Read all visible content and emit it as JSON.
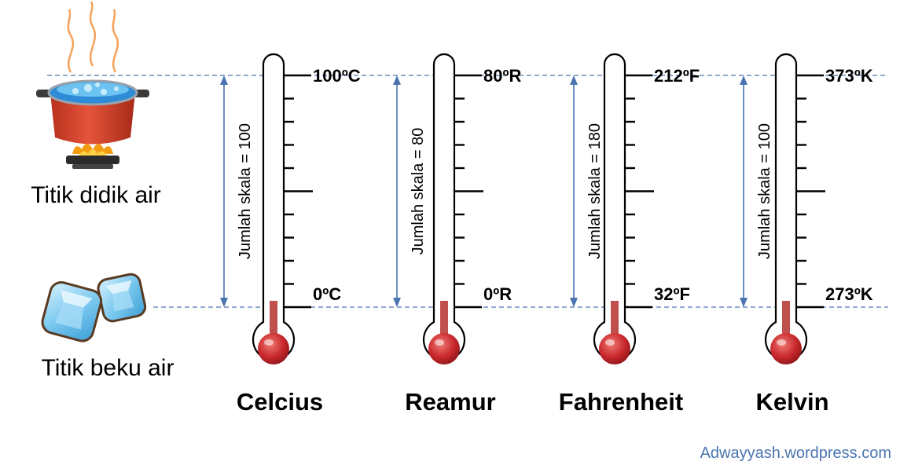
{
  "labels": {
    "boiling": "Titik didik air",
    "freezing": "Titik beku air",
    "watermark": "Adwayyash.wordpress.com"
  },
  "colors": {
    "guide_line": "#4a74b0",
    "scale_arrow": "#4a74b0",
    "mercury": "#c0504d",
    "bulb": "#c9282d",
    "ink": "#000000",
    "watermark": "#4a74b0",
    "pot": "#d9432b",
    "water": "#2e8bd6",
    "flame": "#f39c12",
    "ice": "#8fd3f4"
  },
  "icons": {
    "boiling": "boiling-pot-icon",
    "freezing": "ice-cubes-icon"
  },
  "thermometers": [
    {
      "name": "Celcius",
      "top_label": "100ºC",
      "bottom_label": "0ºC",
      "span": "Jumlah skala = 100"
    },
    {
      "name": "Reamur",
      "top_label": "80ºR",
      "bottom_label": "0ºR",
      "span": "Jumlah skala = 80"
    },
    {
      "name": "Fahrenheit",
      "top_label": "212ºF",
      "bottom_label": "32ºF",
      "span": "Jumlah skala = 180"
    },
    {
      "name": "Kelvin",
      "top_label": "373ºK",
      "bottom_label": "273ºK",
      "span": "Jumlah skala = 100"
    }
  ]
}
